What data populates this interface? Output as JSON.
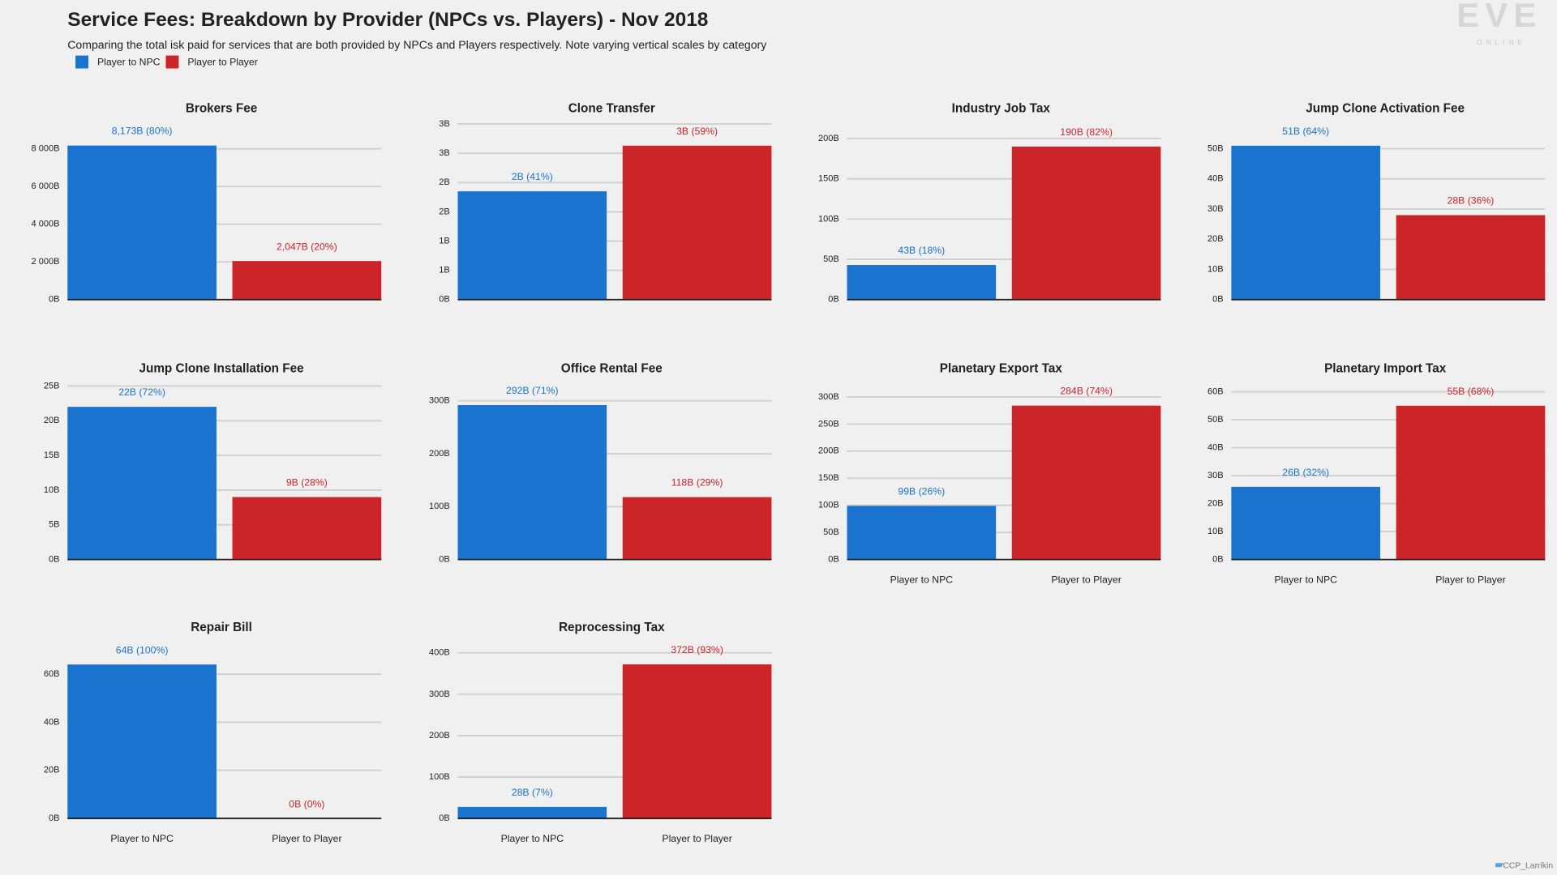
{
  "title": "Service Fees: Breakdown by Provider (NPCs vs. Players) - Nov 2018",
  "subtitle": "Comparing the total isk paid for services that are both provided by NPCs and Players respectively. Note varying vertical scales by category",
  "legend": [
    {
      "name": "Player to NPC",
      "color": "#1a73cf"
    },
    {
      "name": "Player to Player",
      "color": "#cc2529"
    }
  ],
  "logo": "EVE",
  "logo_sub": "ONLINE",
  "credit": "CCP_Larrikin",
  "chart_data": [
    {
      "type": "bar",
      "title": "Brokers Fee",
      "values": [
        8173,
        2047
      ],
      "value_labels": [
        "8,173B (80%)",
        "2,047B (20%)"
      ],
      "ylim": [
        0,
        9316
      ],
      "yticks": [
        {
          "value": 0,
          "label": "0B"
        },
        {
          "value": 2000,
          "label": "2 000B"
        },
        {
          "value": 4000,
          "label": "4 000B"
        },
        {
          "value": 6000,
          "label": "6 000B"
        },
        {
          "value": 8000,
          "label": "8 000B"
        }
      ],
      "grid": true
    },
    {
      "type": "bar",
      "title": "Clone Transfer",
      "values": [
        1.85,
        2.63
      ],
      "value_labels": [
        "2B (41%)",
        "3B (59%)"
      ],
      "ylim": [
        0,
        3
      ],
      "yticks": [
        {
          "value": 0,
          "label": "0B"
        },
        {
          "value": 0.5,
          "label": "1B"
        },
        {
          "value": 1,
          "label": "1B"
        },
        {
          "value": 1.5,
          "label": "2B"
        },
        {
          "value": 2,
          "label": "2B"
        },
        {
          "value": 2.5,
          "label": "3B"
        },
        {
          "value": 3,
          "label": "3B"
        }
      ],
      "grid": true
    },
    {
      "type": "bar",
      "title": "Industry Job Tax",
      "values": [
        43,
        190
      ],
      "value_labels": [
        "43B (18%)",
        "190B (82%)"
      ],
      "ylim": [
        0,
        218
      ],
      "yticks": [
        {
          "value": 0,
          "label": "0B"
        },
        {
          "value": 50,
          "label": "50B"
        },
        {
          "value": 100,
          "label": "100B"
        },
        {
          "value": 150,
          "label": "150B"
        },
        {
          "value": 200,
          "label": "200B"
        }
      ],
      "grid": true
    },
    {
      "type": "bar",
      "title": "Jump Clone Activation Fee",
      "values": [
        51,
        28
      ],
      "value_labels": [
        "51B (64%)",
        "28B (36%)"
      ],
      "ylim": [
        0,
        58.2
      ],
      "yticks": [
        {
          "value": 0,
          "label": "0B"
        },
        {
          "value": 10,
          "label": "10B"
        },
        {
          "value": 20,
          "label": "20B"
        },
        {
          "value": 30,
          "label": "30B"
        },
        {
          "value": 40,
          "label": "40B"
        },
        {
          "value": 50,
          "label": "50B"
        }
      ],
      "grid": true
    },
    {
      "type": "bar",
      "title": "Jump Clone Installation Fee",
      "values": [
        22,
        9
      ],
      "value_labels": [
        "22B (72%)",
        "9B (28%)"
      ],
      "ylim": [
        0,
        25.3
      ],
      "yticks": [
        {
          "value": 0,
          "label": "0B"
        },
        {
          "value": 5,
          "label": "5B"
        },
        {
          "value": 10,
          "label": "10B"
        },
        {
          "value": 15,
          "label": "15B"
        },
        {
          "value": 20,
          "label": "20B"
        },
        {
          "value": 25,
          "label": "25B"
        }
      ],
      "grid": true
    },
    {
      "type": "bar",
      "title": "Office Rental Fee",
      "values": [
        292,
        118
      ],
      "value_labels": [
        "292B (71%)",
        "118B (29%)"
      ],
      "ylim": [
        0,
        332
      ],
      "yticks": [
        {
          "value": 0,
          "label": "0B"
        },
        {
          "value": 100,
          "label": "100B"
        },
        {
          "value": 200,
          "label": "200B"
        },
        {
          "value": 300,
          "label": "300B"
        }
      ],
      "grid": true
    },
    {
      "type": "bar",
      "title": "Planetary Export Tax",
      "categories": [
        "Player to NPC",
        "Player to Player"
      ],
      "values": [
        99,
        284
      ],
      "value_labels": [
        "99B (26%)",
        "284B (74%)"
      ],
      "ylim": [
        0,
        324
      ],
      "yticks": [
        {
          "value": 0,
          "label": "0B"
        },
        {
          "value": 50,
          "label": "50B"
        },
        {
          "value": 100,
          "label": "100B"
        },
        {
          "value": 150,
          "label": "150B"
        },
        {
          "value": 200,
          "label": "200B"
        },
        {
          "value": 250,
          "label": "250B"
        },
        {
          "value": 300,
          "label": "300B"
        }
      ],
      "grid": true
    },
    {
      "type": "bar",
      "title": "Planetary Import Tax",
      "categories": [
        "Player to NPC",
        "Player to Player"
      ],
      "values": [
        26,
        55
      ],
      "value_labels": [
        "26B (32%)",
        "55B (68%)"
      ],
      "ylim": [
        0,
        62.8
      ],
      "yticks": [
        {
          "value": 0,
          "label": "0B"
        },
        {
          "value": 10,
          "label": "10B"
        },
        {
          "value": 20,
          "label": "20B"
        },
        {
          "value": 30,
          "label": "30B"
        },
        {
          "value": 40,
          "label": "40B"
        },
        {
          "value": 50,
          "label": "50B"
        },
        {
          "value": 60,
          "label": "60B"
        }
      ],
      "grid": true
    },
    {
      "type": "bar",
      "title": "Repair Bill",
      "categories": [
        "Player to NPC",
        "Player to Player"
      ],
      "values": [
        64,
        0
      ],
      "value_labels": [
        "64B (100%)",
        "0B (0%)"
      ],
      "ylim": [
        0,
        73
      ],
      "yticks": [
        {
          "value": 0,
          "label": "0B"
        },
        {
          "value": 20,
          "label": "20B"
        },
        {
          "value": 40,
          "label": "40B"
        },
        {
          "value": 60,
          "label": "60B"
        }
      ],
      "grid": true
    },
    {
      "type": "bar",
      "title": "Reprocessing Tax",
      "categories": [
        "Player to NPC",
        "Player to Player"
      ],
      "values": [
        28,
        372
      ],
      "value_labels": [
        "28B (7%)",
        "372B (93%)"
      ],
      "ylim": [
        0,
        424
      ],
      "yticks": [
        {
          "value": 0,
          "label": "0B"
        },
        {
          "value": 100,
          "label": "100B"
        },
        {
          "value": 200,
          "label": "200B"
        },
        {
          "value": 300,
          "label": "300B"
        },
        {
          "value": 400,
          "label": "400B"
        }
      ],
      "grid": true
    }
  ]
}
